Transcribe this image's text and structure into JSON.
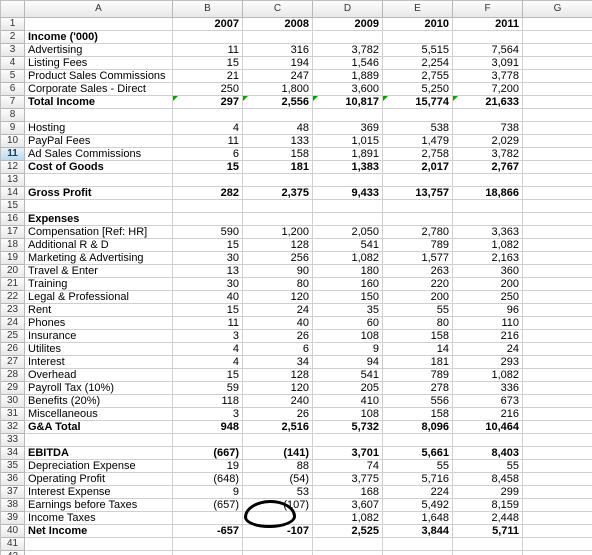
{
  "columns": [
    "A",
    "B",
    "C",
    "D",
    "E",
    "F",
    "G"
  ],
  "rows": [
    {
      "n": 1,
      "label": "",
      "vals": [
        "2007",
        "2008",
        "2009",
        "2010",
        "2011",
        ""
      ],
      "bold": true
    },
    {
      "n": 2,
      "label": "Income ('000)",
      "vals": [
        "",
        "",
        "",
        "",
        "",
        ""
      ],
      "bold": true
    },
    {
      "n": 3,
      "label": "Advertising",
      "vals": [
        "11",
        "316",
        "3,782",
        "5,515",
        "7,564",
        ""
      ]
    },
    {
      "n": 4,
      "label": "Listing Fees",
      "vals": [
        "15",
        "194",
        "1,546",
        "2,254",
        "3,091",
        ""
      ]
    },
    {
      "n": 5,
      "label": "Product Sales Commissions",
      "vals": [
        "21",
        "247",
        "1,889",
        "2,755",
        "3,778",
        ""
      ]
    },
    {
      "n": 6,
      "label": "Corporate Sales - Direct",
      "vals": [
        "250",
        "1,800",
        "3,600",
        "5,250",
        "7,200",
        ""
      ]
    },
    {
      "n": 7,
      "label": "Total Income",
      "vals": [
        "297",
        "2,556",
        "10,817",
        "15,774",
        "21,633",
        ""
      ],
      "bold": true,
      "tri": true
    },
    {
      "n": 8,
      "label": "",
      "vals": [
        "",
        "",
        "",
        "",
        "",
        ""
      ]
    },
    {
      "n": 9,
      "label": "Hosting",
      "vals": [
        "4",
        "48",
        "369",
        "538",
        "738",
        ""
      ]
    },
    {
      "n": 10,
      "label": "PayPal Fees",
      "vals": [
        "11",
        "133",
        "1,015",
        "1,479",
        "2,029",
        ""
      ]
    },
    {
      "n": 11,
      "label": "Ad Sales Commissions",
      "vals": [
        "6",
        "158",
        "1,891",
        "2,758",
        "3,782",
        ""
      ],
      "sel": true
    },
    {
      "n": 12,
      "label": "Cost of Goods",
      "vals": [
        "15",
        "181",
        "1,383",
        "2,017",
        "2,767",
        ""
      ],
      "bold": true
    },
    {
      "n": 13,
      "label": "",
      "vals": [
        "",
        "",
        "",
        "",
        "",
        ""
      ]
    },
    {
      "n": 14,
      "label": "Gross Profit",
      "vals": [
        "282",
        "2,375",
        "9,433",
        "13,757",
        "18,866",
        ""
      ],
      "bold": true
    },
    {
      "n": 15,
      "label": "",
      "vals": [
        "",
        "",
        "",
        "",
        "",
        ""
      ]
    },
    {
      "n": 16,
      "label": "Expenses",
      "vals": [
        "",
        "",
        "",
        "",
        "",
        ""
      ],
      "bold": true
    },
    {
      "n": 17,
      "label": "Compensation [Ref: HR]",
      "vals": [
        "590",
        "1,200",
        "2,050",
        "2,780",
        "3,363",
        ""
      ]
    },
    {
      "n": 18,
      "label": "Additional R & D",
      "vals": [
        "15",
        "128",
        "541",
        "789",
        "1,082",
        ""
      ]
    },
    {
      "n": 19,
      "label": "Marketing & Advertising",
      "vals": [
        "30",
        "256",
        "1,082",
        "1,577",
        "2,163",
        ""
      ]
    },
    {
      "n": 20,
      "label": "Travel & Enter",
      "vals": [
        "13",
        "90",
        "180",
        "263",
        "360",
        ""
      ]
    },
    {
      "n": 21,
      "label": "Training",
      "vals": [
        "30",
        "80",
        "160",
        "220",
        "200",
        ""
      ]
    },
    {
      "n": 22,
      "label": "Legal & Professional",
      "vals": [
        "40",
        "120",
        "150",
        "200",
        "250",
        ""
      ]
    },
    {
      "n": 23,
      "label": "Rent",
      "vals": [
        "15",
        "24",
        "35",
        "55",
        "96",
        ""
      ]
    },
    {
      "n": 24,
      "label": "Phones",
      "vals": [
        "11",
        "40",
        "60",
        "80",
        "110",
        ""
      ]
    },
    {
      "n": 25,
      "label": "Insurance",
      "vals": [
        "3",
        "26",
        "108",
        "158",
        "216",
        ""
      ]
    },
    {
      "n": 26,
      "label": "Utilites",
      "vals": [
        "4",
        "6",
        "9",
        "14",
        "24",
        ""
      ]
    },
    {
      "n": 27,
      "label": "Interest",
      "vals": [
        "4",
        "34",
        "94",
        "181",
        "293",
        ""
      ]
    },
    {
      "n": 28,
      "label": "Overhead",
      "vals": [
        "15",
        "128",
        "541",
        "789",
        "1,082",
        ""
      ]
    },
    {
      "n": 29,
      "label": "Payroll Tax (10%)",
      "vals": [
        "59",
        "120",
        "205",
        "278",
        "336",
        ""
      ]
    },
    {
      "n": 30,
      "label": "Benefits (20%)",
      "vals": [
        "118",
        "240",
        "410",
        "556",
        "673",
        ""
      ]
    },
    {
      "n": 31,
      "label": "Miscellaneous",
      "vals": [
        "3",
        "26",
        "108",
        "158",
        "216",
        ""
      ]
    },
    {
      "n": 32,
      "label": "G&A Total",
      "vals": [
        "948",
        "2,516",
        "5,732",
        "8,096",
        "10,464",
        ""
      ],
      "bold": true
    },
    {
      "n": 33,
      "label": "",
      "vals": [
        "",
        "",
        "",
        "",
        "",
        ""
      ]
    },
    {
      "n": 34,
      "label": "EBITDA",
      "vals": [
        "(667)",
        "(141)",
        "3,701",
        "5,661",
        "8,403",
        ""
      ],
      "bold": true
    },
    {
      "n": 35,
      "label": "Depreciation Expense",
      "vals": [
        "19",
        "88",
        "74",
        "55",
        "55",
        ""
      ]
    },
    {
      "n": 36,
      "label": "Operating Profit",
      "vals": [
        "(648)",
        "(54)",
        "3,775",
        "5,716",
        "8,458",
        ""
      ]
    },
    {
      "n": 37,
      "label": "Interest Expense",
      "vals": [
        "9",
        "53",
        "168",
        "224",
        "299",
        ""
      ]
    },
    {
      "n": 38,
      "label": "Earnings before Taxes",
      "vals": [
        "(657)",
        "(107)",
        "3,607",
        "5,492",
        "8,159",
        ""
      ]
    },
    {
      "n": 39,
      "label": "Income Taxes",
      "vals": [
        "",
        "",
        "1,082",
        "1,648",
        "2,448",
        ""
      ]
    },
    {
      "n": 40,
      "label": "Net Income",
      "vals": [
        "-657",
        "-107",
        "2,525",
        "3,844",
        "5,711",
        ""
      ],
      "bold": true
    },
    {
      "n": 41,
      "label": "",
      "vals": [
        "",
        "",
        "",
        "",
        "",
        ""
      ]
    },
    {
      "n": 42,
      "label": "",
      "vals": [
        "",
        "",
        "",
        "",
        "",
        ""
      ]
    },
    {
      "n": 43,
      "label": "",
      "vals": [
        "",
        "",
        "",
        "",
        "",
        ""
      ]
    }
  ]
}
